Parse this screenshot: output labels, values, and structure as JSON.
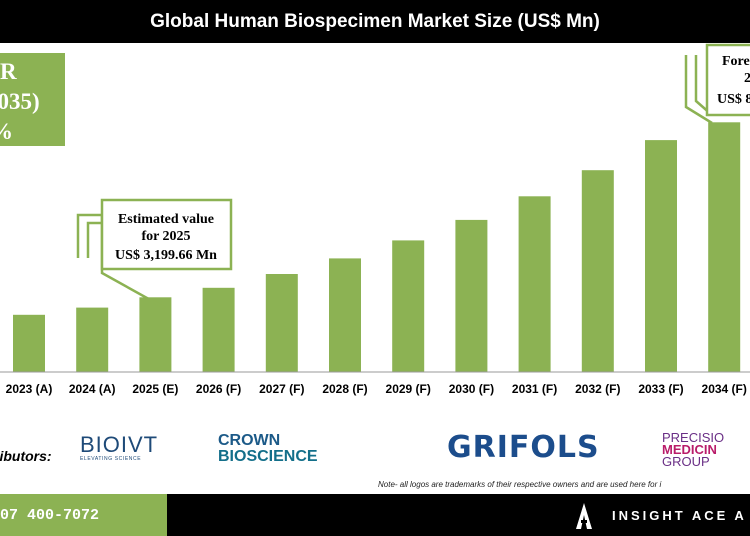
{
  "title": "Global Human Biospecimen Market Size (US$ Mn)",
  "cagr_box": {
    "line1": "R",
    "line2": "2035)",
    "line3": "%"
  },
  "callout_2025": {
    "line1": "Estimated value",
    "line2": "for 2025",
    "line3": "US$ 3,199.66 Mn"
  },
  "callout_2035": {
    "line1": "Fore",
    "line2": "2",
    "line3": "US$ 8"
  },
  "chart_data": {
    "type": "bar",
    "title": "Global Human Biospecimen Market Size (US$ Mn)",
    "categories": [
      "2023 (A)",
      "2024 (A)",
      "2025 (E)",
      "2026 (F)",
      "2027 (F)",
      "2028 (F)",
      "2029 (F)",
      "2030 (F)",
      "2031 (F)",
      "2032 (F)",
      "2033 (F)",
      "2034 (F)"
    ],
    "values": [
      2450,
      2760,
      3199.66,
      3610,
      4200,
      4870,
      5640,
      6520,
      7530,
      8650,
      9940,
      10700
    ],
    "ylim": [
      0,
      12000
    ],
    "bar_color": "#8cb253",
    "grid": false,
    "legend": "none"
  },
  "distributors_label": "ributors:",
  "logos": {
    "bioivt": "BIOIVT",
    "bioivt_tagline": "ELEVATING SCIENCE",
    "crown_line1": "CROWN",
    "crown_line2": "BIOSCIENCE",
    "grifols": "GRIFOLS",
    "precision_line1": "PRECISIO",
    "precision_line2": "MEDICIN",
    "precision_line3": "GROUP"
  },
  "note": "Note- all logos are trademarks of their respective owners and are used here for i",
  "footer": {
    "phone": "07 400-7072",
    "brand": "INSIGHT ACE A"
  },
  "colors": {
    "accent": "#8cb253",
    "dark": "#000000"
  }
}
